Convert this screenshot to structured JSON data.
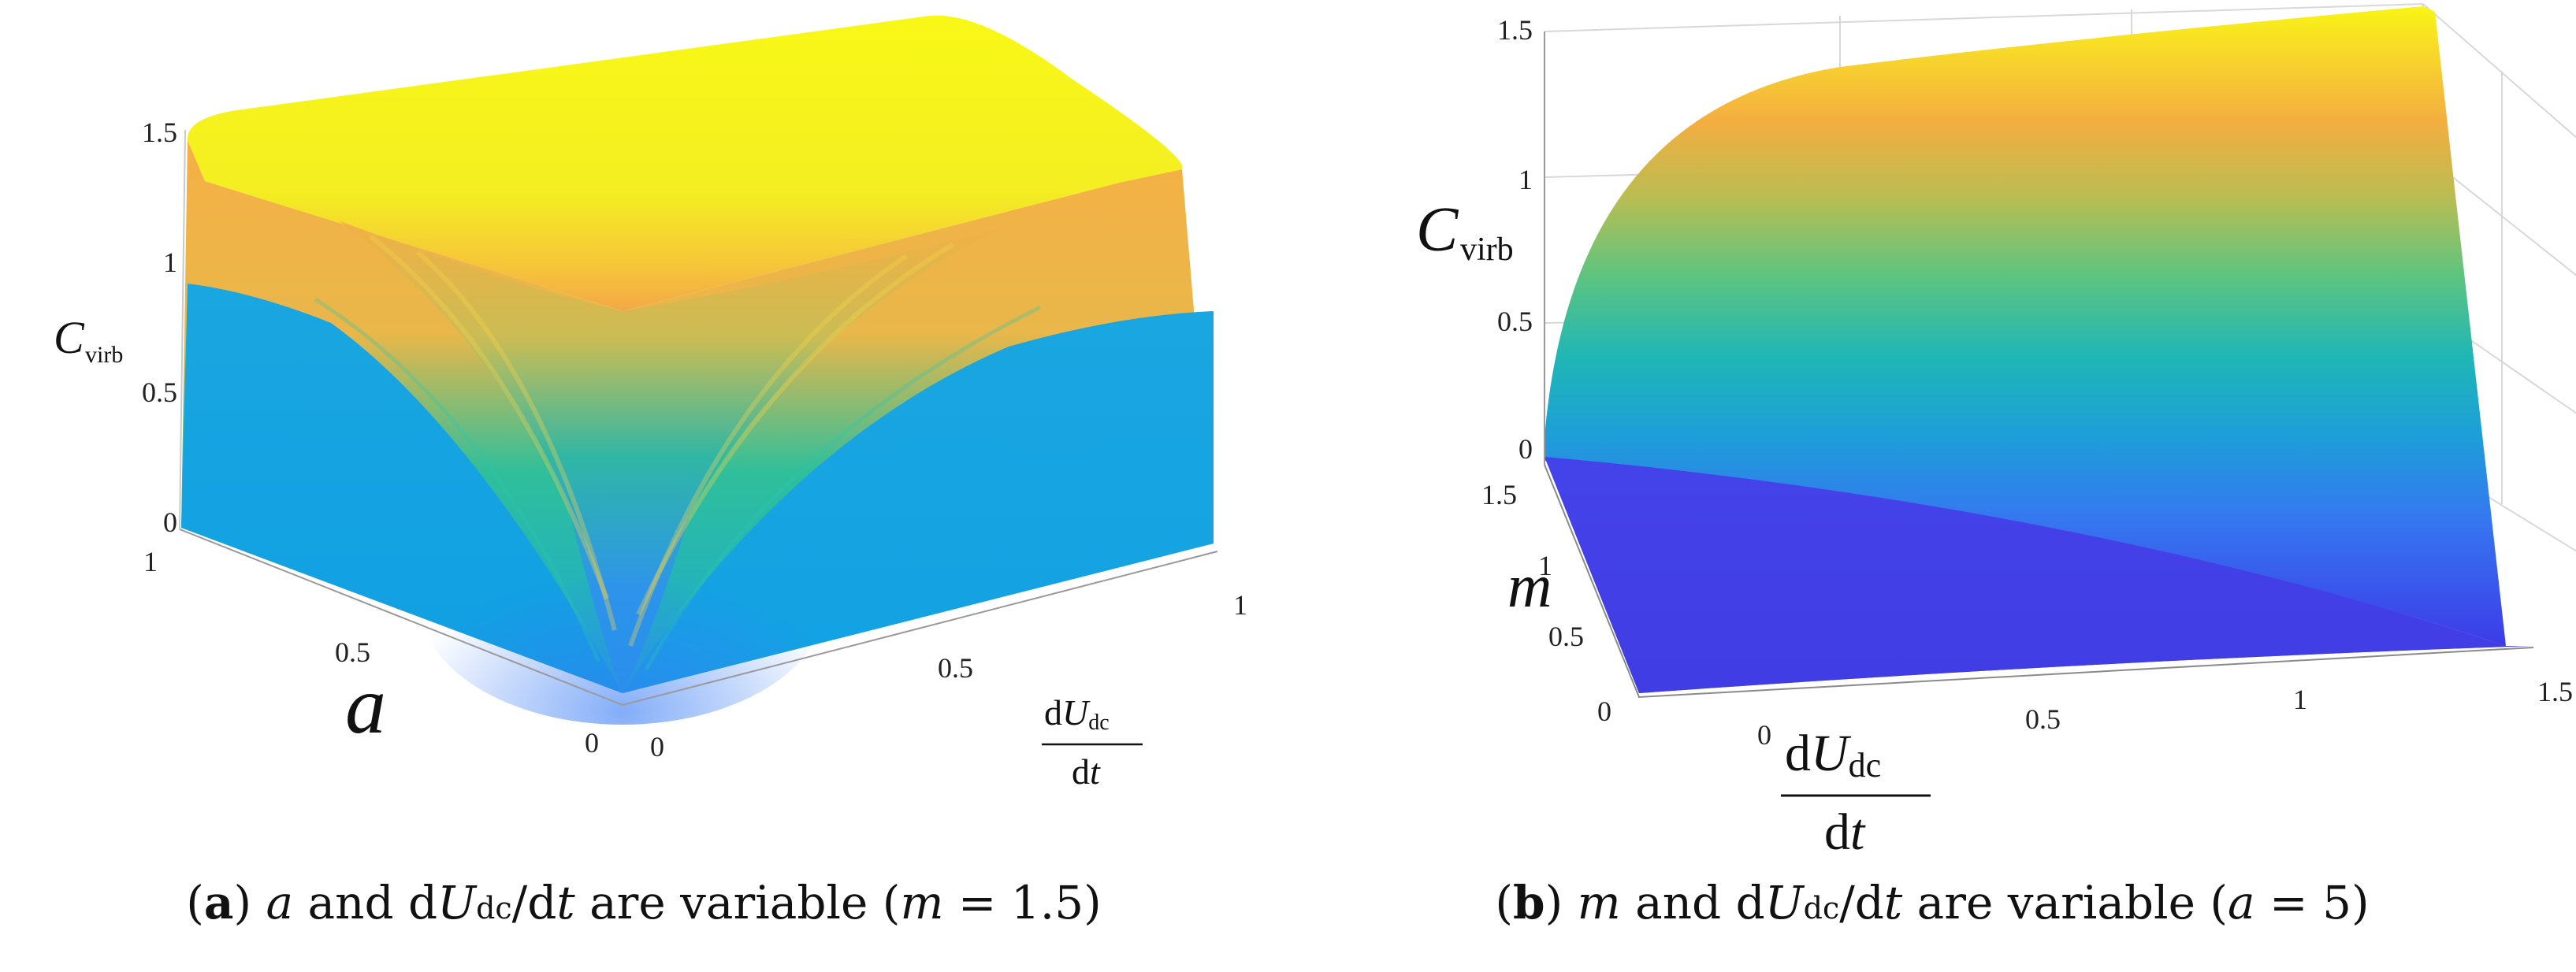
{
  "chart_data": [
    {
      "type": "surface",
      "panel_label": "a",
      "caption": {
        "var1": "a",
        "mid1": " and d",
        "var2": "U",
        "sub": "dc",
        "mid2": "/d",
        "var3": "t",
        "mid3": " are variable (",
        "var4": "m",
        "tail": " = 1.5)"
      },
      "zlabel": {
        "main": "C",
        "sub": "virb"
      },
      "xlabel": {
        "var": "a"
      },
      "ylabel": {
        "num_prefix": "d",
        "num_var": "U",
        "num_sub": "dc",
        "den_prefix": "d",
        "den_var": "t"
      },
      "z_ticks": [
        "0",
        "0.5",
        "1",
        "1.5"
      ],
      "x_ticks": [
        "0",
        "0.5",
        "1"
      ],
      "y_ticks": [
        "0",
        "0.5",
        "1"
      ],
      "xlim": [
        0,
        1
      ],
      "ylim": [
        0,
        1
      ],
      "zlim": [
        0,
        1.5
      ],
      "colormap": "parula",
      "grid": false
    },
    {
      "type": "surface",
      "panel_label": "b",
      "caption": {
        "var1": "m",
        "mid1": " and d",
        "var2": "U",
        "sub": "dc",
        "mid2": "/d",
        "var3": "t",
        "mid3": " are variable (",
        "var4": "a",
        "tail": " = 5)"
      },
      "zlabel": {
        "main": "C",
        "sub": "virb"
      },
      "xlabel": {
        "var": "m"
      },
      "ylabel": {
        "num_prefix": "d",
        "num_var": "U",
        "num_sub": "dc",
        "den_prefix": "d",
        "den_var": "t"
      },
      "z_ticks": [
        "0",
        "0.5",
        "1",
        "1.5"
      ],
      "x_ticks": [
        "0",
        "0.5",
        "1",
        "1.5"
      ],
      "y_ticks": [
        "0",
        "0.5",
        "1",
        "1.5"
      ],
      "xlim": [
        0,
        1.5
      ],
      "ylim": [
        0,
        1.5
      ],
      "zlim": [
        0,
        1.5
      ],
      "colormap": "parula",
      "grid": true
    }
  ]
}
